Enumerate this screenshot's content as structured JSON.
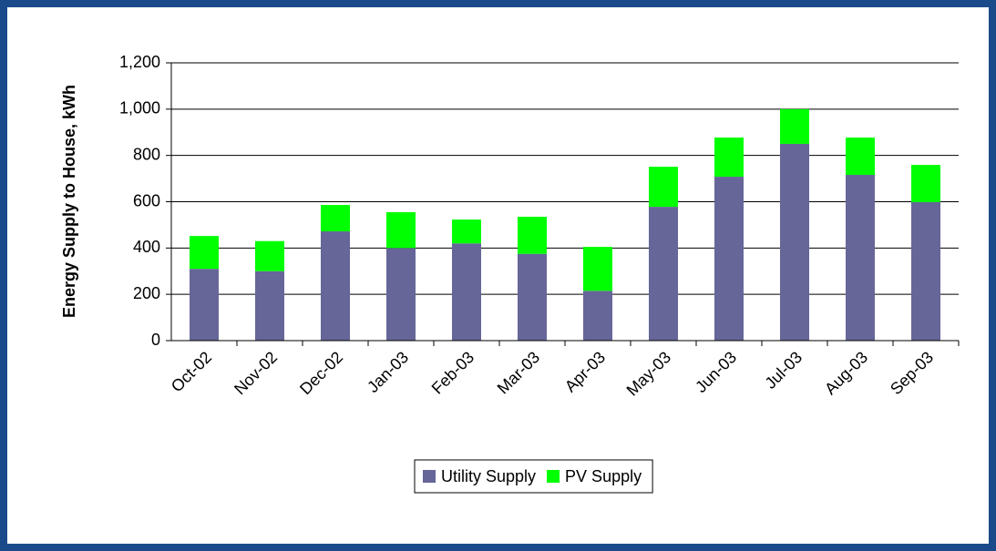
{
  "chart_data": {
    "type": "stacked_bar",
    "y_label": "Energy Supply to House, kWh",
    "categories": [
      "Oct-02",
      "Nov-02",
      "Dec-02",
      "Jan-03",
      "Feb-03",
      "Mar-03",
      "Apr-03",
      "May-03",
      "Jun-03",
      "Jul-03",
      "Aug-03",
      "Sep-03"
    ],
    "series": [
      {
        "name": "Utility Supply",
        "color": "#666699",
        "values": [
          310,
          300,
          472,
          400,
          420,
          375,
          215,
          578,
          708,
          850,
          716,
          598
        ]
      },
      {
        "name": "PV Supply",
        "color": "#00ff00",
        "values": [
          142,
          130,
          114,
          155,
          103,
          160,
          190,
          173,
          169,
          150,
          161,
          161
        ]
      }
    ],
    "ylim": [
      0,
      1200
    ],
    "yticks": [
      0,
      200,
      400,
      600,
      800,
      {
        "value": 1000,
        "label": "1,000"
      },
      {
        "value": 1200,
        "label": "1,200"
      }
    ],
    "grid": true,
    "legend": "bottom"
  }
}
